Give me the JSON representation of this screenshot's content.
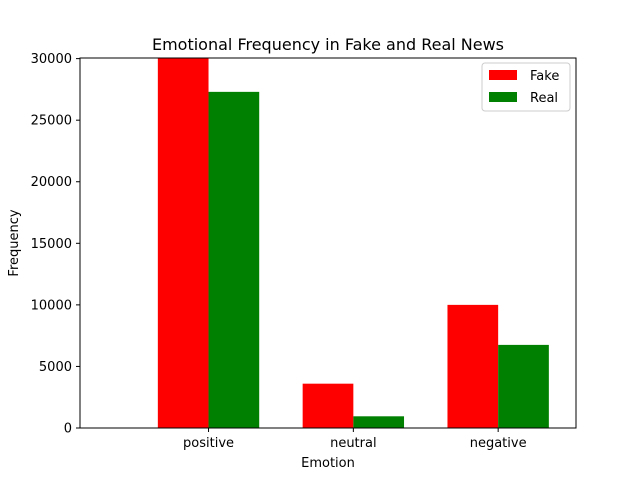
{
  "chart_data": {
    "type": "bar",
    "title": "Emotional Frequency in Fake and Real News",
    "xlabel": "Emotion",
    "ylabel": "Frequency",
    "categories": [
      "positive",
      "neutral",
      "negative"
    ],
    "series": [
      {
        "name": "Fake",
        "color": "#ff0000",
        "values": [
          30050,
          3600,
          10000
        ]
      },
      {
        "name": "Real",
        "color": "#008000",
        "values": [
          27300,
          950,
          6750
        ]
      }
    ],
    "ylim": [
      0,
      30050
    ],
    "yticks": [
      0,
      5000,
      10000,
      15000,
      20000,
      25000,
      30000
    ],
    "ytick_labels": [
      "0",
      "5000",
      "10000",
      "15000",
      "20000",
      "25000",
      "30000"
    ],
    "grid": false,
    "legend": "top-right"
  }
}
